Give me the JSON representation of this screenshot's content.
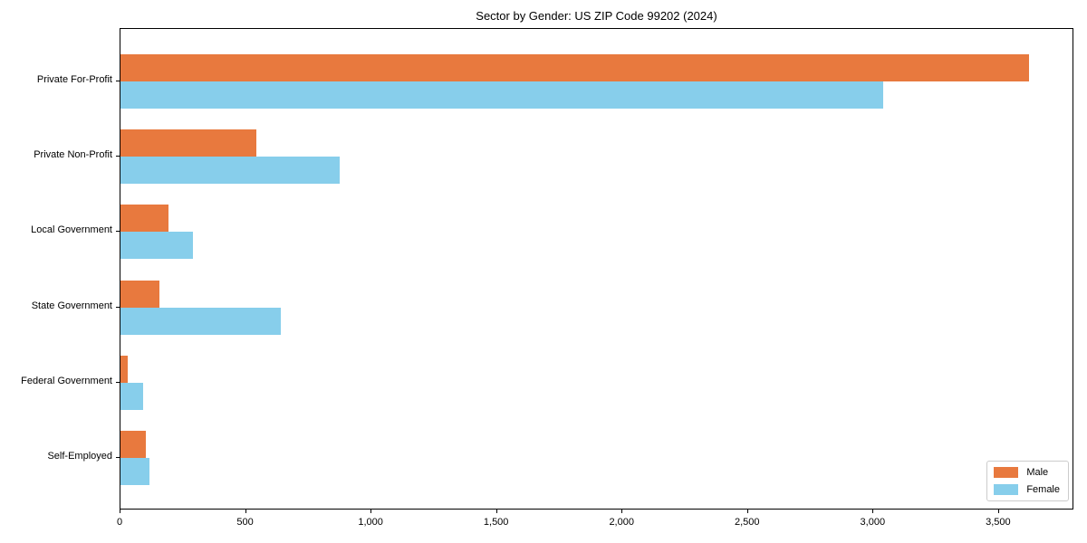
{
  "title": "Sector by Gender: US ZIP Code 99202 (2024)",
  "chart_data": {
    "type": "bar",
    "orientation": "horizontal",
    "title": "Sector by Gender: US ZIP Code 99202 (2024)",
    "categories": [
      "Private For-Profit",
      "Private Non-Profit",
      "Local Government",
      "State Government",
      "Federal Government",
      "Self-Employed"
    ],
    "series": [
      {
        "name": "Male",
        "color": "#e8793e",
        "values": [
          3620,
          540,
          190,
          155,
          30,
          100
        ]
      },
      {
        "name": "Female",
        "color": "#87ceeb",
        "values": [
          3040,
          875,
          290,
          640,
          90,
          115
        ]
      }
    ],
    "xlabel": "",
    "ylabel": "",
    "xlim": [
      0,
      3800
    ],
    "x_ticks": {
      "values": [
        0,
        500,
        1000,
        1500,
        2000,
        2500,
        3000,
        3500
      ],
      "labels": [
        "0",
        "500",
        "1,000",
        "1,500",
        "2,000",
        "2,500",
        "3,000",
        "3,500"
      ]
    },
    "grid": false,
    "legend_position": "lower right",
    "background_color": "#ffffff",
    "spine_color": "#000000",
    "text_color": "#000000"
  }
}
